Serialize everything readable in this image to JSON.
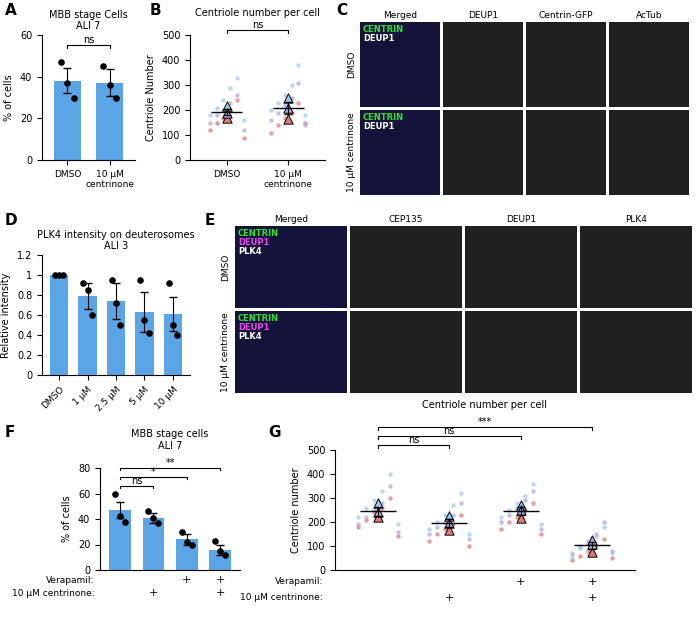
{
  "chart_data": [
    {
      "panel": "A",
      "type": "bar",
      "title": "MBB stage Cells\nALI 7",
      "y_label": "% of cells",
      "categories": [
        "DMSO",
        "10 μM\ncentrinone"
      ],
      "values": [
        38,
        37
      ],
      "errors": [
        6,
        6.5
      ],
      "points": [
        [
          47,
          37,
          30
        ],
        [
          45,
          36,
          30
        ]
      ],
      "color": "#5ba4e5",
      "ylim": [
        0,
        60
      ],
      "yticks": [
        0,
        20,
        40,
        60
      ],
      "comparisons": [
        {
          "from": 0,
          "to": 1,
          "label": "ns"
        }
      ]
    },
    {
      "panel": "B",
      "type": "scatter",
      "title": "Centriole number per cell",
      "y_label": "Centriole Number",
      "categories": [
        "DMSO",
        "10 μM\ncentrinone"
      ],
      "means": [
        192,
        208
      ],
      "errors": [
        13,
        25
      ],
      "replicates": [
        {
          "color": "#e07b7b",
          "points": [
            [
              120,
              150,
              170,
              200,
              240,
              90
            ],
            [
              110,
              140,
              170,
              190,
              230,
              150
            ]
          ],
          "means": [
            170,
            165
          ]
        },
        {
          "color": "#9ccbf0",
          "points": [
            [
              180,
              210,
              240,
              290,
              330,
              160
            ],
            [
              200,
              230,
              260,
              300,
              380,
              180
            ]
          ],
          "means": [
            215,
            250
          ]
        },
        {
          "color": "#b3a8e6",
          "points": [
            [
              150,
              180,
              200,
              230,
              260,
              120
            ],
            [
              160,
              190,
              220,
              250,
              310,
              140
            ]
          ],
          "means": [
            190,
            210
          ]
        }
      ],
      "ylim": [
        0,
        500
      ],
      "yticks": [
        0,
        100,
        200,
        300,
        400,
        500
      ],
      "comparisons": [
        {
          "from": 0,
          "to": 1,
          "label": "ns"
        }
      ]
    },
    {
      "panel": "D",
      "type": "bar",
      "title": "PLK4 intensity on deuterosomes\nALI 3",
      "y_label": "Relative intensity",
      "categories": [
        "DMSO",
        "1 μM",
        "2.5 μM",
        "5 μM",
        "10 μM"
      ],
      "values": [
        1,
        0.79,
        0.74,
        0.63,
        0.61
      ],
      "errors": [
        0.01,
        0.13,
        0.18,
        0.2,
        0.17
      ],
      "points": [
        [
          1,
          1,
          1
        ],
        [
          0.92,
          0.85,
          0.6
        ],
        [
          0.95,
          0.72,
          0.5
        ],
        [
          0.95,
          0.55,
          0.42
        ],
        [
          0.92,
          0.5,
          0.4
        ]
      ],
      "color": "#5ba4e5",
      "ylim": [
        0,
        1.2
      ],
      "yticks": [
        0,
        0.2,
        0.4,
        0.6,
        0.8,
        1,
        1.2
      ]
    },
    {
      "panel": "F",
      "type": "bar",
      "title": "MBB stage cells\nALI 7",
      "y_label": "% of cells",
      "categories": [
        null,
        null,
        null,
        null
      ],
      "values": [
        47,
        41,
        24,
        16
      ],
      "errors": [
        6,
        4,
        4,
        4
      ],
      "points": [
        [
          60,
          42,
          38
        ],
        [
          46,
          41,
          37
        ],
        [
          30,
          22,
          20
        ],
        [
          23,
          15,
          12
        ]
      ],
      "color": "#5ba4e5",
      "ylim": [
        0,
        80
      ],
      "yticks": [
        0,
        20,
        40,
        60,
        80
      ],
      "comparisons": [
        {
          "from": 0,
          "to": 1,
          "label": "ns"
        },
        {
          "from": 0,
          "to": 2,
          "label": "*"
        },
        {
          "from": 0,
          "to": 3,
          "label": "**"
        }
      ],
      "treatment_rows": [
        {
          "name": "Verapamil:",
          "present": [
            false,
            false,
            true,
            true
          ]
        },
        {
          "name": "10 μM centrinone:",
          "present": [
            false,
            true,
            false,
            true
          ]
        }
      ],
      "present_mark": "+"
    },
    {
      "panel": "G",
      "type": "scatter",
      "title": "Centriole number per cell",
      "y_label": "Centriole number",
      "categories": [
        null,
        null,
        null,
        null
      ],
      "means": [
        245,
        195,
        245,
        103
      ],
      "errors": [
        18,
        17,
        16,
        15
      ],
      "replicates": [
        {
          "color": "#e07b7b",
          "points": [
            [
              180,
              210,
              240,
              260,
              300,
              140
            ],
            [
              120,
              150,
              170,
              190,
              230,
              100
            ],
            [
              170,
              200,
              220,
              250,
              280,
              150
            ],
            [
              40,
              60,
              80,
              100,
              130,
              50
            ]
          ],
          "means": [
            220,
            165,
            215,
            75
          ]
        },
        {
          "color": "#9ccbf0",
          "points": [
            [
              220,
              260,
              290,
              330,
              400,
              190
            ],
            [
              170,
              200,
              230,
              270,
              320,
              150
            ],
            [
              220,
              250,
              280,
              310,
              360,
              190
            ],
            [
              60,
              90,
              110,
              140,
              180,
              70
            ]
          ],
          "means": [
            280,
            225,
            270,
            110
          ]
        },
        {
          "color": "#b3a8e6",
          "points": [
            [
              190,
              220,
              250,
              280,
              350,
              160
            ],
            [
              150,
              180,
              200,
              230,
              280,
              130
            ],
            [
              200,
              230,
              260,
              290,
              330,
              170
            ],
            [
              70,
              100,
              120,
              150,
              200,
              80
            ]
          ],
          "means": [
            240,
            195,
            250,
            125
          ]
        }
      ],
      "ylim": [
        0,
        500
      ],
      "yticks": [
        0,
        100,
        200,
        300,
        400,
        500
      ],
      "comparisons": [
        {
          "from": 0,
          "to": 1,
          "label": "ns"
        },
        {
          "from": 0,
          "to": 2,
          "label": "ns"
        },
        {
          "from": 0,
          "to": 3,
          "label": "***"
        }
      ],
      "treatment_rows": [
        {
          "name": "Verapamil:",
          "present": [
            false,
            false,
            true,
            true
          ]
        },
        {
          "name": "10 μM centrinone:",
          "present": [
            false,
            true,
            false,
            true
          ]
        }
      ],
      "present_mark": "+"
    }
  ],
  "images": [
    {
      "panel": "C",
      "columns": [
        "Merged",
        "DEUP1",
        "Centrin-GFP",
        "AcTub"
      ],
      "rows": [
        "DMSO",
        "10 μM centrinone"
      ],
      "overlay": [
        {
          "text": "CENTRIN",
          "color": "#33dd33"
        },
        {
          "text": "DEUP1",
          "color": "#ffffff"
        }
      ]
    },
    {
      "panel": "E",
      "columns": [
        "Merged",
        "CEP135",
        "DEUP1",
        "PLK4"
      ],
      "rows": [
        "DMSO",
        "10 μM centrinone"
      ],
      "overlay": [
        {
          "text": "CENTRIN",
          "color": "#33dd33"
        },
        {
          "text": "DEUP1",
          "color": "#ee44ee"
        },
        {
          "text": "PLK4",
          "color": "#ffffff"
        }
      ]
    }
  ]
}
